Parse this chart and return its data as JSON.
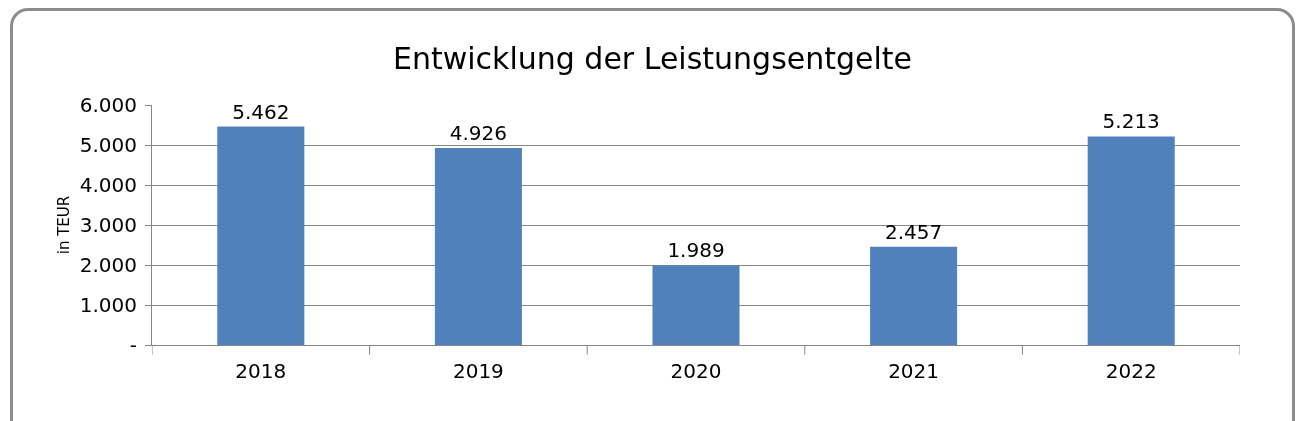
{
  "chart_data": {
    "type": "bar",
    "title": "Entwicklung der Leistungsentgelte",
    "ylabel": "in TEUR",
    "categories": [
      "2018",
      "2019",
      "2020",
      "2021",
      "2022"
    ],
    "values": [
      5462,
      4926,
      1989,
      2457,
      5213
    ],
    "value_labels": [
      "5.462",
      "4.926",
      "1.989",
      "2.457",
      "5.213"
    ],
    "color": "#4f81bd",
    "ylim": [
      0,
      6000
    ],
    "yticks": [
      {
        "value": 0,
        "label": "-"
      },
      {
        "value": 1000,
        "label": "1.000"
      },
      {
        "value": 2000,
        "label": "2.000"
      },
      {
        "value": 3000,
        "label": "3.000"
      },
      {
        "value": 4000,
        "label": "4.000"
      },
      {
        "value": 5000,
        "label": "5.000"
      },
      {
        "value": 6000,
        "label": "6.000"
      }
    ],
    "grid": "y",
    "legend": false
  }
}
